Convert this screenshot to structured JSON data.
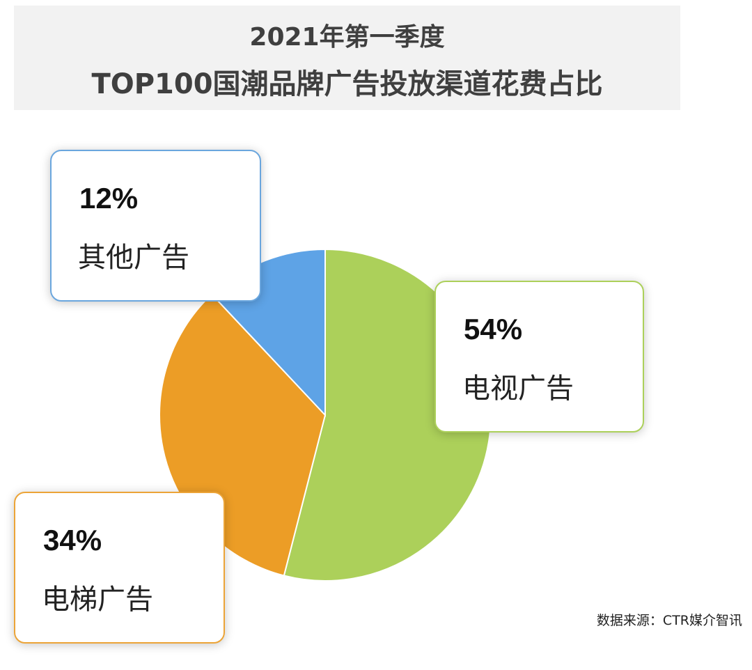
{
  "title": {
    "line1": "2021年第一季度",
    "line2": "TOP100国潮品牌广告投放渠道花费占比"
  },
  "chart_data": {
    "type": "pie",
    "slices": [
      {
        "label": "电视广告",
        "value": 54,
        "display": "54%",
        "color": "#acd05a"
      },
      {
        "label": "电梯广告",
        "value": 34,
        "display": "34%",
        "color": "#ec9d26"
      },
      {
        "label": "其他广告",
        "value": 12,
        "display": "12%",
        "color": "#5ea3e6"
      }
    ],
    "legend": "callouts"
  },
  "source": "数据来源：CTR媒介智讯"
}
